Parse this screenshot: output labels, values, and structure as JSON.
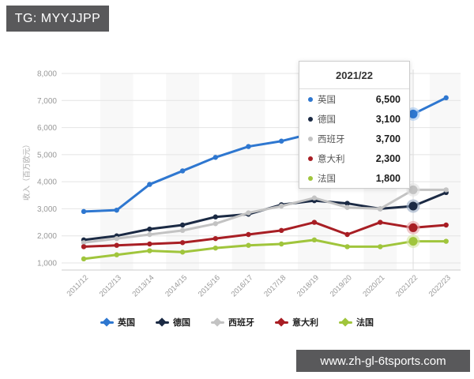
{
  "badge": {
    "text": "TG: MYYJJPP"
  },
  "watermark": {
    "text": "www.zh-gl-6tsports.com"
  },
  "colors": {
    "badge_bg": "#59595b",
    "grid": "#e4e4e4",
    "axis_line": "#cccccc",
    "axis_text": "#999999",
    "band": "#f4f4f4",
    "crosshair": "#dddddd"
  },
  "chart_data": {
    "type": "line",
    "title": "",
    "xlabel": "",
    "ylabel": "收入（百万欧元）",
    "ylim": [
      1000,
      8000
    ],
    "ytick_step": 1000,
    "grid": true,
    "legend_position": "bottom",
    "y_ticks": [
      "1,000",
      "2,000",
      "3,000",
      "4,000",
      "5,000",
      "6,000",
      "7,000",
      "8,000"
    ],
    "x_labels": [
      "2011/12",
      "2012/13",
      "2013/14",
      "2014/15",
      "2015/16",
      "2016/17",
      "2017/18",
      "2018/19",
      "2019/20",
      "2020/21",
      "2021/22",
      "2022/23"
    ],
    "highlight_x": "2021/22",
    "highlight_index": 10,
    "series": [
      {
        "id": "uk",
        "name": "英国",
        "color": "#2e77d0",
        "halo": "#a9cbf1",
        "values": [
          2900,
          2950,
          3900,
          4400,
          4900,
          5300,
          5500,
          5800,
          6000,
          6200,
          6500,
          7100
        ]
      },
      {
        "id": "germany",
        "name": "德国",
        "color": "#1b2a44",
        "halo": "#9fb0c8",
        "values": [
          1850,
          2000,
          2250,
          2400,
          2700,
          2800,
          3150,
          3300,
          3200,
          3000,
          3100,
          3600
        ]
      },
      {
        "id": "spain",
        "name": "西班牙",
        "color": "#c3c3c3",
        "halo": "#e3e3e3",
        "values": [
          1750,
          1900,
          2050,
          2200,
          2450,
          2850,
          3100,
          3400,
          3050,
          3000,
          3700,
          3700
        ]
      },
      {
        "id": "italy",
        "name": "意大利",
        "color": "#a81e24",
        "halo": "#e7abae",
        "values": [
          1600,
          1650,
          1700,
          1750,
          1900,
          2050,
          2200,
          2500,
          2050,
          2500,
          2300,
          2400
        ]
      },
      {
        "id": "france",
        "name": "法国",
        "color": "#a0c53c",
        "halo": "#d5e7a4",
        "values": [
          1150,
          1300,
          1450,
          1400,
          1550,
          1650,
          1700,
          1850,
          1600,
          1600,
          1800,
          1800
        ]
      }
    ]
  },
  "tooltip": {
    "title": "2021/22",
    "rows": [
      {
        "label": "英国",
        "value": "6,500"
      },
      {
        "label": "德国",
        "value": "3,100"
      },
      {
        "label": "西班牙",
        "value": "3,700"
      },
      {
        "label": "意大利",
        "value": "2,300"
      },
      {
        "label": "法国",
        "value": "1,800"
      }
    ]
  }
}
